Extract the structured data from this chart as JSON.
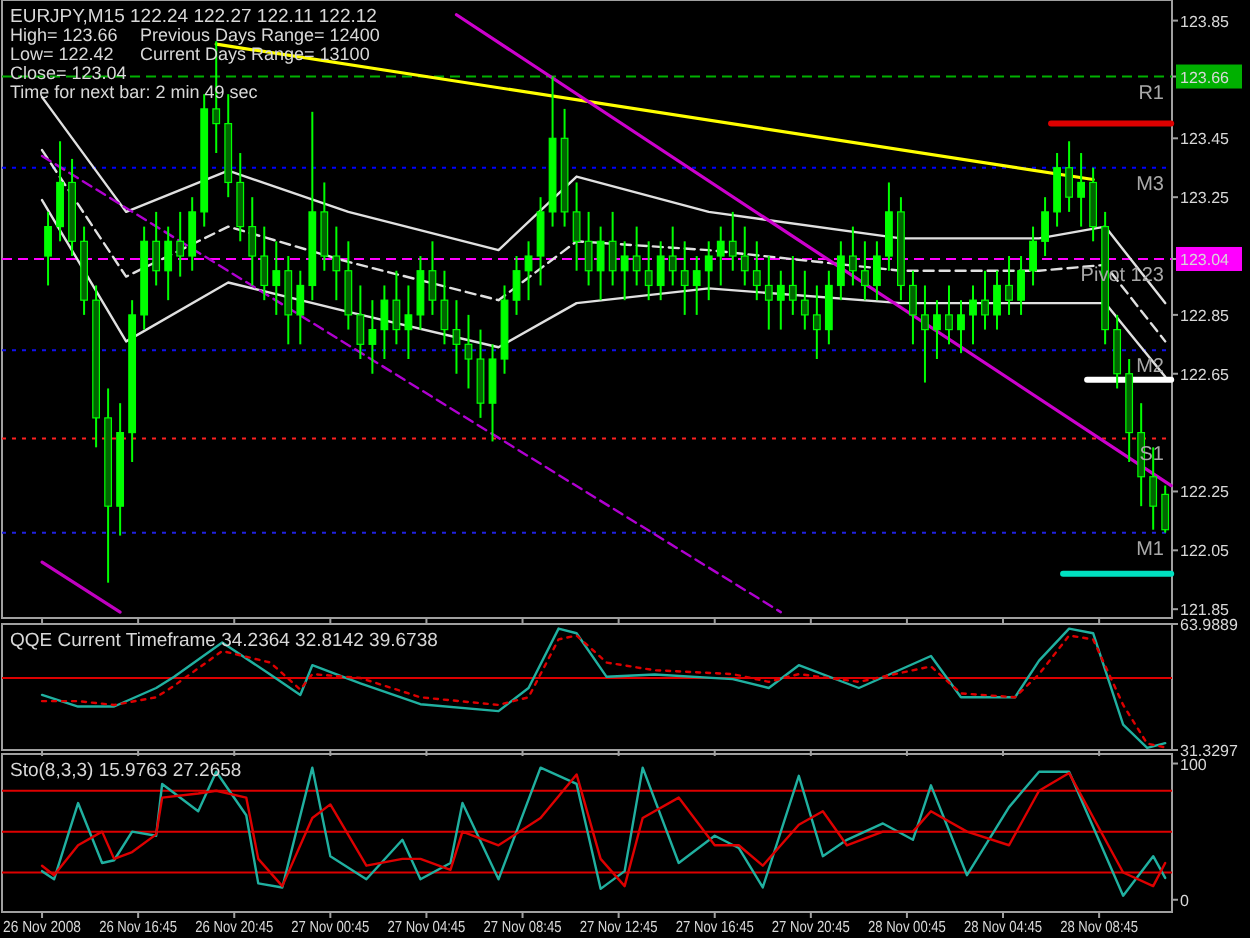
{
  "chart_data": [
    {
      "type": "candlestick",
      "title": "EURJPY,M15  122.24 122.27 122.11 122.12",
      "annotations": [
        "High= 123.66",
        "Previous Days Range= 12400",
        "Low= 122.42",
        "Current Days Range= 13100",
        "Close= 123.04",
        "Time for next bar: 2 min 49 sec"
      ],
      "color": "#00ff00",
      "x": [
        "2008-11-26T13:00",
        "2008-11-26T13:30",
        "2008-11-26T14:00",
        "2008-11-26T14:30",
        "2008-11-26T15:00",
        "2008-11-26T15:30",
        "2008-11-26T16:00",
        "2008-11-26T16:30",
        "2008-11-26T17:00",
        "2008-11-26T17:30",
        "2008-11-26T18:00",
        "2008-11-26T18:30",
        "2008-11-26T19:00",
        "2008-11-26T19:30",
        "2008-11-26T20:00",
        "2008-11-26T20:30",
        "2008-11-26T21:00",
        "2008-11-26T21:30",
        "2008-11-26T22:00",
        "2008-11-26T22:30",
        "2008-11-26T23:00",
        "2008-11-26T23:30",
        "2008-11-27T00:00",
        "2008-11-27T00:30",
        "2008-11-27T01:00",
        "2008-11-27T01:30",
        "2008-11-27T02:00",
        "2008-11-27T02:30",
        "2008-11-27T03:00",
        "2008-11-27T03:30",
        "2008-11-27T04:00",
        "2008-11-27T04:30",
        "2008-11-27T05:00",
        "2008-11-27T05:30",
        "2008-11-27T06:00",
        "2008-11-27T06:30",
        "2008-11-27T07:00",
        "2008-11-27T07:30",
        "2008-11-27T08:00",
        "2008-11-27T08:30",
        "2008-11-27T09:00",
        "2008-11-27T09:30",
        "2008-11-27T10:00",
        "2008-11-27T10:30",
        "2008-11-27T11:00",
        "2008-11-27T11:30",
        "2008-11-27T12:00",
        "2008-11-27T12:30",
        "2008-11-27T13:00",
        "2008-11-27T13:30",
        "2008-11-27T14:00",
        "2008-11-27T14:30",
        "2008-11-27T15:00",
        "2008-11-27T15:30",
        "2008-11-27T16:00",
        "2008-11-27T16:30",
        "2008-11-27T17:00",
        "2008-11-27T17:30",
        "2008-11-27T18:00",
        "2008-11-27T18:30",
        "2008-11-27T19:00",
        "2008-11-27T19:30",
        "2008-11-27T20:00",
        "2008-11-27T20:30",
        "2008-11-27T21:00",
        "2008-11-27T21:30",
        "2008-11-27T22:00",
        "2008-11-27T22:30",
        "2008-11-27T23:00",
        "2008-11-27T23:30",
        "2008-11-28T00:00",
        "2008-11-28T00:30",
        "2008-11-28T01:00",
        "2008-11-28T01:30",
        "2008-11-28T02:00",
        "2008-11-28T02:30",
        "2008-11-28T03:00",
        "2008-11-28T03:30",
        "2008-11-28T04:00",
        "2008-11-28T04:30",
        "2008-11-28T05:00",
        "2008-11-28T05:30",
        "2008-11-28T06:00",
        "2008-11-28T06:30",
        "2008-11-28T07:00",
        "2008-11-28T07:30",
        "2008-11-28T08:00",
        "2008-11-28T08:30",
        "2008-11-28T09:00",
        "2008-11-28T09:30",
        "2008-11-28T10:00",
        "2008-11-28T10:30",
        "2008-11-28T11:00",
        "2008-11-28T11:30"
      ],
      "ohlc": [
        [
          123.05,
          123.2,
          122.95,
          123.15
        ],
        [
          123.15,
          123.44,
          123.1,
          123.3
        ],
        [
          123.3,
          123.38,
          123.05,
          123.1
        ],
        [
          123.1,
          123.15,
          122.85,
          122.9
        ],
        [
          122.9,
          122.95,
          122.4,
          122.5
        ],
        [
          122.5,
          122.6,
          121.94,
          122.2
        ],
        [
          122.2,
          122.55,
          122.1,
          122.45
        ],
        [
          122.45,
          122.9,
          122.35,
          122.85
        ],
        [
          122.85,
          123.15,
          122.8,
          123.1
        ],
        [
          123.1,
          123.2,
          122.95,
          123.0
        ],
        [
          123.0,
          123.15,
          122.9,
          123.1
        ],
        [
          123.1,
          123.2,
          122.98,
          123.05
        ],
        [
          123.05,
          123.25,
          123.0,
          123.2
        ],
        [
          123.2,
          123.6,
          123.15,
          123.55
        ],
        [
          123.55,
          123.78,
          123.4,
          123.5
        ],
        [
          123.5,
          123.6,
          123.25,
          123.3
        ],
        [
          123.3,
          123.4,
          123.1,
          123.15
        ],
        [
          123.15,
          123.25,
          122.95,
          123.05
        ],
        [
          123.05,
          123.15,
          122.9,
          122.95
        ],
        [
          122.95,
          123.1,
          122.85,
          123.0
        ],
        [
          123.0,
          123.05,
          122.75,
          122.85
        ],
        [
          122.85,
          123.0,
          122.75,
          122.95
        ],
        [
          122.95,
          123.54,
          122.9,
          123.2
        ],
        [
          123.2,
          123.3,
          123.0,
          123.05
        ],
        [
          123.05,
          123.15,
          122.9,
          123.0
        ],
        [
          123.0,
          123.1,
          122.8,
          122.85
        ],
        [
          122.85,
          122.95,
          122.7,
          122.75
        ],
        [
          122.75,
          122.9,
          122.65,
          122.8
        ],
        [
          122.8,
          122.95,
          122.7,
          122.9
        ],
        [
          122.9,
          123.0,
          122.75,
          122.8
        ],
        [
          122.8,
          122.95,
          122.7,
          122.85
        ],
        [
          122.85,
          123.05,
          122.8,
          123.0
        ],
        [
          123.0,
          123.1,
          122.85,
          122.9
        ],
        [
          122.9,
          123.0,
          122.75,
          122.8
        ],
        [
          122.8,
          122.9,
          122.65,
          122.75
        ],
        [
          122.75,
          122.85,
          122.6,
          122.7
        ],
        [
          122.7,
          122.8,
          122.5,
          122.55
        ],
        [
          122.55,
          122.75,
          122.42,
          122.7
        ],
        [
          122.7,
          122.95,
          122.65,
          122.9
        ],
        [
          122.9,
          123.05,
          122.85,
          123.0
        ],
        [
          123.0,
          123.1,
          122.9,
          123.05
        ],
        [
          123.05,
          123.25,
          122.95,
          123.2
        ],
        [
          123.2,
          123.66,
          123.15,
          123.45
        ],
        [
          123.45,
          123.55,
          123.15,
          123.2
        ],
        [
          123.2,
          123.3,
          123.0,
          123.1
        ],
        [
          123.1,
          123.2,
          122.95,
          123.0
        ],
        [
          123.0,
          123.15,
          122.9,
          123.1
        ],
        [
          123.1,
          123.2,
          122.95,
          123.0
        ],
        [
          123.0,
          123.1,
          122.9,
          123.05
        ],
        [
          123.05,
          123.15,
          122.95,
          123.0
        ],
        [
          123.0,
          123.1,
          122.9,
          122.95
        ],
        [
          122.95,
          123.1,
          122.9,
          123.05
        ],
        [
          123.05,
          123.15,
          122.95,
          123.0
        ],
        [
          123.0,
          123.1,
          122.85,
          122.95
        ],
        [
          122.95,
          123.05,
          122.85,
          123.0
        ],
        [
          123.0,
          123.1,
          122.9,
          123.05
        ],
        [
          123.05,
          123.15,
          122.95,
          123.1
        ],
        [
          123.1,
          123.2,
          123.0,
          123.05
        ],
        [
          123.05,
          123.15,
          122.95,
          123.0
        ],
        [
          123.0,
          123.1,
          122.9,
          122.95
        ],
        [
          122.95,
          123.05,
          122.8,
          122.9
        ],
        [
          122.9,
          123.0,
          122.8,
          122.95
        ],
        [
          122.95,
          123.05,
          122.85,
          122.9
        ],
        [
          122.9,
          123.0,
          122.8,
          122.85
        ],
        [
          122.85,
          122.95,
          122.7,
          122.8
        ],
        [
          122.8,
          123.0,
          122.75,
          122.95
        ],
        [
          122.95,
          123.1,
          122.9,
          123.05
        ],
        [
          123.05,
          123.15,
          122.95,
          123.0
        ],
        [
          123.0,
          123.1,
          122.9,
          122.95
        ],
        [
          122.95,
          123.1,
          122.9,
          123.05
        ],
        [
          123.05,
          123.3,
          123.0,
          123.2
        ],
        [
          123.2,
          123.25,
          122.9,
          122.95
        ],
        [
          122.95,
          123.0,
          122.75,
          122.85
        ],
        [
          122.85,
          122.95,
          122.62,
          122.8
        ],
        [
          122.8,
          122.9,
          122.7,
          122.85
        ],
        [
          122.85,
          122.95,
          122.75,
          122.8
        ],
        [
          122.8,
          122.9,
          122.72,
          122.85
        ],
        [
          122.85,
          122.95,
          122.75,
          122.9
        ],
        [
          122.9,
          123.0,
          122.8,
          122.85
        ],
        [
          122.85,
          123.0,
          122.8,
          122.95
        ],
        [
          122.95,
          123.05,
          122.85,
          122.9
        ],
        [
          122.9,
          123.05,
          122.85,
          123.0
        ],
        [
          123.0,
          123.15,
          122.95,
          123.1
        ],
        [
          123.1,
          123.25,
          123.05,
          123.2
        ],
        [
          123.2,
          123.4,
          123.15,
          123.35
        ],
        [
          123.35,
          123.44,
          123.2,
          123.25
        ],
        [
          123.25,
          123.4,
          123.15,
          123.3
        ],
        [
          123.3,
          123.35,
          123.1,
          123.15
        ],
        [
          123.15,
          123.2,
          122.75,
          122.8
        ],
        [
          122.8,
          122.85,
          122.6,
          122.65
        ],
        [
          122.65,
          122.7,
          122.35,
          122.45
        ],
        [
          122.45,
          122.55,
          122.2,
          122.3
        ],
        [
          122.3,
          122.4,
          122.12,
          122.2
        ],
        [
          122.24,
          122.27,
          122.11,
          122.12
        ]
      ],
      "series": [
        {
          "type": "line",
          "color": "#e0e0e0",
          "x": [
            "2008-11-26T12:45",
            "2008-11-26T16:15",
            "2008-11-26T20:30",
            "2008-11-27T01:30",
            "2008-11-27T07:45",
            "2008-11-27T11:00",
            "2008-11-27T16:30",
            "2008-11-28T00:30",
            "2008-11-28T06:15",
            "2008-11-28T09:00",
            "2008-11-28T11:30"
          ],
          "values": [
            123.59,
            123.2,
            123.34,
            123.2,
            123.07,
            123.32,
            123.2,
            123.11,
            123.11,
            123.15,
            122.89
          ]
        },
        {
          "type": "line",
          "color": "#e0e0e0",
          "line_style": "dashed",
          "x": [
            "2008-11-26T12:45",
            "2008-11-26T16:15",
            "2008-11-26T20:30",
            "2008-11-27T01:30",
            "2008-11-27T07:45",
            "2008-11-27T11:00",
            "2008-11-27T16:30",
            "2008-11-28T00:30",
            "2008-11-28T06:15",
            "2008-11-28T09:00",
            "2008-11-28T11:30"
          ],
          "values": [
            123.41,
            122.98,
            123.15,
            123.03,
            122.9,
            123.1,
            123.07,
            123.0,
            123.0,
            123.02,
            122.76
          ]
        },
        {
          "type": "line",
          "color": "#e0e0e0",
          "x": [
            "2008-11-26T12:45",
            "2008-11-26T16:15",
            "2008-11-26T20:30",
            "2008-11-27T01:30",
            "2008-11-27T07:45",
            "2008-11-27T11:00",
            "2008-11-27T16:30",
            "2008-11-28T00:30",
            "2008-11-28T06:15",
            "2008-11-28T09:00",
            "2008-11-28T11:30"
          ],
          "values": [
            123.24,
            122.76,
            122.96,
            122.86,
            122.74,
            122.89,
            122.94,
            122.89,
            122.89,
            122.89,
            122.64
          ]
        },
        {
          "type": "line",
          "color": "#ffff00",
          "x": [
            "2008-11-26T20:00",
            "2008-11-28T08:30"
          ],
          "values": [
            123.77,
            123.31
          ]
        },
        {
          "type": "line",
          "color": "#cc00cc",
          "x": [
            "2008-11-27T06:00",
            "2008-11-28T11:45"
          ],
          "values": [
            123.87,
            122.27
          ]
        },
        {
          "type": "line",
          "color": "#b000d0",
          "line_style": "dashed",
          "x": [
            "2008-11-26T12:45",
            "2008-11-27T19:30"
          ],
          "values": [
            123.39,
            121.84
          ]
        },
        {
          "type": "line",
          "color": "#c000c0",
          "x": [
            "2008-11-26T12:45",
            "2008-11-26T16:00"
          ],
          "values": [
            122.01,
            121.84
          ]
        },
        {
          "type": "line",
          "color": "#dd0000",
          "x": [
            "2008-11-28T06:45",
            "2008-11-28T11:45"
          ],
          "values": [
            123.5,
            123.5
          ]
        },
        {
          "type": "line",
          "color": "#ffffff",
          "x": [
            "2008-11-28T08:15",
            "2008-11-28T11:45"
          ],
          "values": [
            122.63,
            122.63
          ]
        },
        {
          "type": "line",
          "color": "#00e0c0",
          "x": [
            "2008-11-28T07:15",
            "2008-11-28T11:45"
          ],
          "values": [
            121.97,
            121.97
          ]
        }
      ],
      "ref_lines": [
        {
          "axis": "y",
          "value": 123.66,
          "label": "R1",
          "color": "#00b000",
          "line_style": "dashed"
        },
        {
          "axis": "y",
          "value": 123.35,
          "label": "M3",
          "color": "#0000ff",
          "line_style": "dotted"
        },
        {
          "axis": "y",
          "value": 123.04,
          "label": "Pivot  123",
          "color": "#ff00ff",
          "line_style": "dashed"
        },
        {
          "axis": "y",
          "value": 122.73,
          "label": "M2",
          "color": "#1010ee",
          "line_style": "dotted"
        },
        {
          "axis": "y",
          "value": 122.43,
          "label": "S1",
          "color": "#ff2020",
          "line_style": "dotted"
        },
        {
          "axis": "y",
          "value": 122.11,
          "label": "M1",
          "color": "#2020dd",
          "line_style": "dotted"
        }
      ],
      "xlim": [
        "2008-11-26T11:05",
        "2008-11-28T11:47"
      ],
      "ylim": [
        121.82,
        123.92
      ],
      "yticks": [
        121.85,
        122.05,
        122.25,
        122.65,
        122.85,
        {
          "value": 123.04,
          "label": "123.04"
        },
        123.25,
        123.45,
        {
          "value": 123.66,
          "label": "123.66"
        },
        123.85
      ],
      "tick_labels": "y"
    },
    {
      "type": "line",
      "title": "QQE Current Timeframe 34.2364 32.8142 39.6738",
      "series": [
        {
          "color": "#20b0a0",
          "x": [
            "2008-11-26T12:45",
            "2008-11-26T14:15",
            "2008-11-26T15:45",
            "2008-11-26T17:30",
            "2008-11-26T18:15",
            "2008-11-26T20:15",
            "2008-11-26T22:15",
            "2008-11-26T23:30",
            "2008-11-27T00:00",
            "2008-11-27T02:00",
            "2008-11-27T04:30",
            "2008-11-27T07:45",
            "2008-11-27T09:00",
            "2008-11-27T10:15",
            "2008-11-27T11:00",
            "2008-11-27T12:15",
            "2008-11-27T14:15",
            "2008-11-27T17:30",
            "2008-11-27T19:00",
            "2008-11-27T20:15",
            "2008-11-27T22:45",
            "2008-11-28T01:45",
            "2008-11-28T03:00",
            "2008-11-28T05:15",
            "2008-11-28T06:15",
            "2008-11-28T07:30",
            "2008-11-28T08:30",
            "2008-11-28T09:45",
            "2008-11-28T10:45",
            "2008-11-28T11:30"
          ],
          "values": [
            45.6,
            42.6,
            42.6,
            47.4,
            50.3,
            59.2,
            50.9,
            45.6,
            53.3,
            48.6,
            43.2,
            41.4,
            47.4,
            62.8,
            61.6,
            50.3,
            50.9,
            49.7,
            47.4,
            53.3,
            47.4,
            55.7,
            45.0,
            45.0,
            54.5,
            62.8,
            61.6,
            37.9,
            31.9,
            33.1
          ]
        },
        {
          "color": "#dd0000",
          "line_style": "dotted",
          "x": [
            "2008-11-26T12:45",
            "2008-11-26T14:15",
            "2008-11-26T15:45",
            "2008-11-26T17:30",
            "2008-11-26T18:15",
            "2008-11-26T20:15",
            "2008-11-26T22:15",
            "2008-11-26T23:30",
            "2008-11-27T00:00",
            "2008-11-27T02:00",
            "2008-11-27T04:30",
            "2008-11-27T07:45",
            "2008-11-27T09:00",
            "2008-11-27T10:15",
            "2008-11-27T11:00",
            "2008-11-27T12:15",
            "2008-11-27T14:15",
            "2008-11-27T17:30",
            "2008-11-27T19:00",
            "2008-11-27T20:15",
            "2008-11-27T22:45",
            "2008-11-28T01:45",
            "2008-11-28T03:00",
            "2008-11-28T05:15",
            "2008-11-28T06:15",
            "2008-11-28T07:30",
            "2008-11-28T08:30",
            "2008-11-28T09:45",
            "2008-11-28T10:45",
            "2008-11-28T11:30"
          ],
          "values": [
            44,
            44,
            43,
            45,
            48,
            57,
            54,
            47,
            51,
            50,
            45,
            43,
            45,
            60,
            61,
            54,
            52,
            51,
            49,
            51,
            49,
            53,
            46,
            45,
            51,
            61,
            60,
            43,
            33,
            32
          ]
        }
      ],
      "ref_lines": [
        {
          "axis": "y",
          "value": 50,
          "color": "#dd0000",
          "line_style": "solid"
        }
      ],
      "xlim": [
        "2008-11-26T11:05",
        "2008-11-28T11:47"
      ],
      "ylim": [
        31.3297,
        63.9889
      ],
      "yticks": [
        31.3297,
        63.9889
      ],
      "tick_labels": "y"
    },
    {
      "type": "line",
      "title": "Sto(8,3,3) 15.9763 27.2658",
      "series": [
        {
          "color": "#20b0a0",
          "x": [
            "2008-11-26T12:45",
            "2008-11-26T13:15",
            "2008-11-26T14:15",
            "2008-11-26T15:15",
            "2008-11-26T15:45",
            "2008-11-26T16:30",
            "2008-11-26T17:30",
            "2008-11-26T17:45",
            "2008-11-26T19:15",
            "2008-11-26T20:00",
            "2008-11-26T21:15",
            "2008-11-26T21:45",
            "2008-11-26T22:45",
            "2008-11-27T00:00",
            "2008-11-27T00:45",
            "2008-11-27T02:15",
            "2008-11-27T03:45",
            "2008-11-27T04:30",
            "2008-11-27T05:45",
            "2008-11-27T06:15",
            "2008-11-27T07:45",
            "2008-11-27T09:30",
            "2008-11-27T11:00",
            "2008-11-27T12:00",
            "2008-11-27T13:00",
            "2008-11-27T13:45",
            "2008-11-27T15:15",
            "2008-11-27T16:45",
            "2008-11-27T17:45",
            "2008-11-27T18:45",
            "2008-11-27T20:15",
            "2008-11-27T21:15",
            "2008-11-27T22:15",
            "2008-11-27T23:45",
            "2008-11-28T01:00",
            "2008-11-28T01:45",
            "2008-11-28T03:15",
            "2008-11-28T05:00",
            "2008-11-28T06:15",
            "2008-11-28T07:30",
            "2008-11-28T09:45",
            "2008-11-28T11:00",
            "2008-11-28T11:30"
          ],
          "values": [
            21,
            15,
            71,
            27,
            29,
            50,
            47,
            85,
            65,
            94,
            62,
            12,
            9,
            97,
            32,
            15,
            44,
            15,
            27,
            71,
            15,
            97,
            85,
            8,
            21,
            97,
            27,
            47,
            38,
            9,
            91,
            32,
            44,
            56,
            44,
            84,
            18,
            68,
            94,
            94,
            3,
            32,
            16
          ]
        },
        {
          "color": "#dd0000",
          "x": [
            "2008-11-26T12:45",
            "2008-11-26T13:15",
            "2008-11-26T14:15",
            "2008-11-26T15:15",
            "2008-11-26T15:45",
            "2008-11-26T16:30",
            "2008-11-26T17:30",
            "2008-11-26T17:45",
            "2008-11-26T19:15",
            "2008-11-26T20:00",
            "2008-11-26T21:15",
            "2008-11-26T21:45",
            "2008-11-26T22:45",
            "2008-11-27T00:00",
            "2008-11-27T00:45",
            "2008-11-27T02:15",
            "2008-11-27T03:45",
            "2008-11-27T04:30",
            "2008-11-27T05:45",
            "2008-11-27T06:15",
            "2008-11-27T07:45",
            "2008-11-27T09:30",
            "2008-11-27T11:00",
            "2008-11-27T12:00",
            "2008-11-27T13:00",
            "2008-11-27T13:45",
            "2008-11-27T15:15",
            "2008-11-27T16:45",
            "2008-11-27T17:45",
            "2008-11-27T18:45",
            "2008-11-27T20:15",
            "2008-11-27T21:15",
            "2008-11-27T22:15",
            "2008-11-27T23:45",
            "2008-11-28T01:00",
            "2008-11-28T01:45",
            "2008-11-28T03:15",
            "2008-11-28T05:00",
            "2008-11-28T06:15",
            "2008-11-28T07:30",
            "2008-11-28T09:45",
            "2008-11-28T11:00",
            "2008-11-28T11:30"
          ],
          "values": [
            25,
            18,
            40,
            50,
            30,
            35,
            48,
            75,
            78,
            80,
            75,
            30,
            10,
            60,
            70,
            25,
            30,
            30,
            22,
            50,
            40,
            60,
            92,
            30,
            10,
            60,
            75,
            40,
            40,
            25,
            55,
            65,
            40,
            50,
            50,
            65,
            50,
            40,
            80,
            93,
            20,
            10,
            27
          ]
        }
      ],
      "ref_lines": [
        {
          "axis": "y",
          "value": 20,
          "color": "#dd0000",
          "line_style": "solid"
        },
        {
          "axis": "y",
          "value": 50,
          "color": "#dd0000",
          "line_style": "solid"
        },
        {
          "axis": "y",
          "value": 80,
          "color": "#dd0000",
          "line_style": "solid"
        }
      ],
      "xlim": [
        "2008-11-26T11:05",
        "2008-11-28T11:47"
      ],
      "xticks": [
        {
          "value": "2008-11-26T12:45",
          "label": "26 Nov 2008"
        },
        {
          "value": "2008-11-26T16:45",
          "label": "26 Nov 16:45"
        },
        {
          "value": "2008-11-26T20:45",
          "label": "26 Nov 20:45"
        },
        {
          "value": "2008-11-27T00:45",
          "label": "27 Nov 00:45"
        },
        {
          "value": "2008-11-27T04:45",
          "label": "27 Nov 04:45"
        },
        {
          "value": "2008-11-27T08:45",
          "label": "27 Nov 08:45"
        },
        {
          "value": "2008-11-27T12:45",
          "label": "27 Nov 12:45"
        },
        {
          "value": "2008-11-27T16:45",
          "label": "27 Nov 16:45"
        },
        {
          "value": "2008-11-27T20:45",
          "label": "27 Nov 20:45"
        },
        {
          "value": "2008-11-28T00:45",
          "label": "28 Nov 00:45"
        },
        {
          "value": "2008-11-28T04:45",
          "label": "28 Nov 04:45"
        },
        {
          "value": "2008-11-28T08:45",
          "label": "28 Nov 08:45"
        }
      ],
      "ylim": [
        -9,
        107
      ],
      "yticks": [
        0,
        100
      ]
    }
  ]
}
